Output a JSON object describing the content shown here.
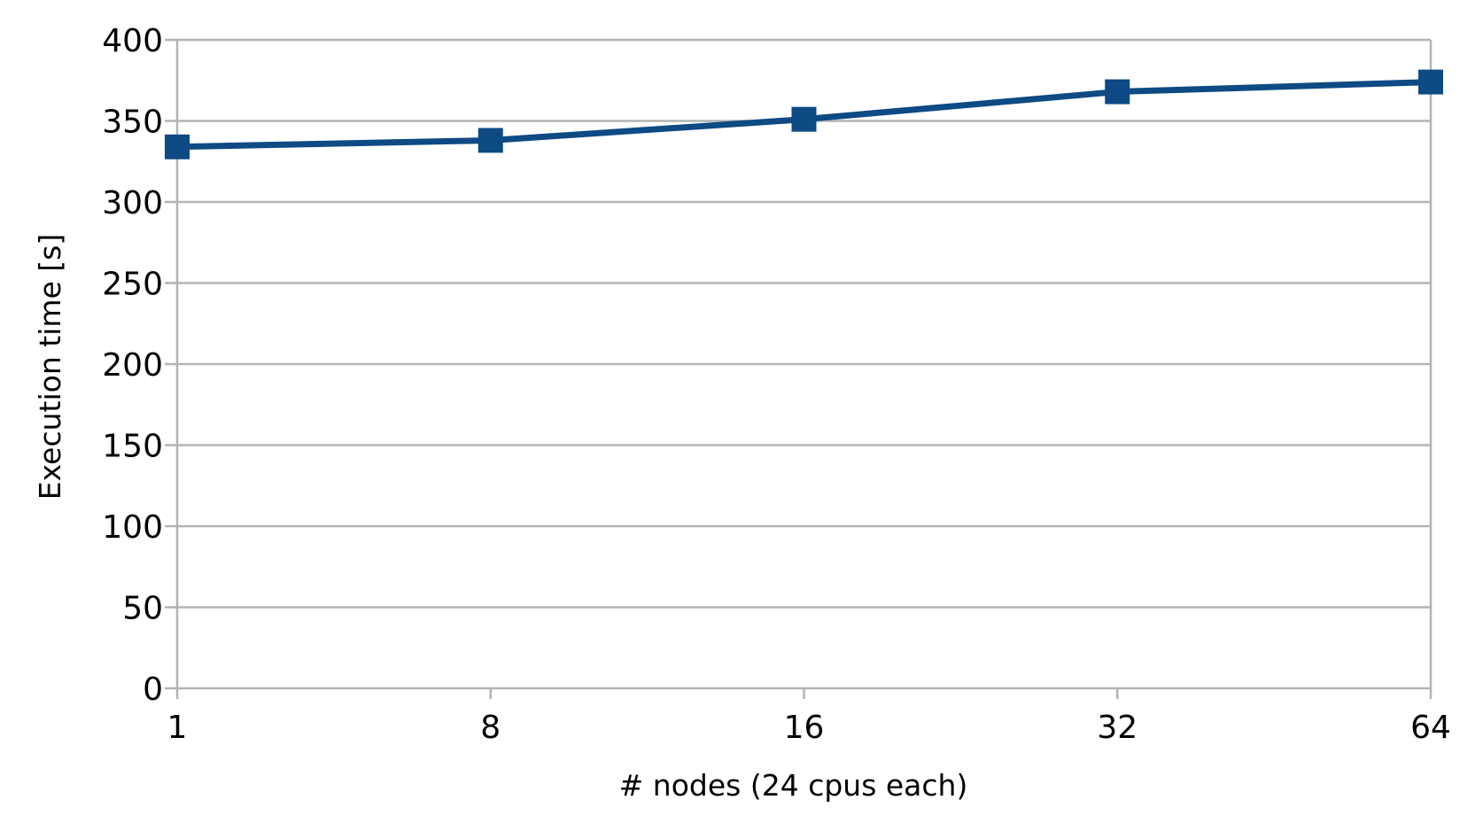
{
  "chart_data": {
    "type": "line",
    "title": "",
    "xlabel": "# nodes (24 cpus each)",
    "ylabel": "Execution time [s]",
    "categories": [
      "1",
      "8",
      "16",
      "32",
      "64"
    ],
    "x_scale": "categorical",
    "ylim": [
      0,
      400
    ],
    "yticks": [
      0,
      50,
      100,
      150,
      200,
      250,
      300,
      350,
      400
    ],
    "grid": "horizontal",
    "legend": "none",
    "marker": "square",
    "series": [
      {
        "color": "#0e4a84",
        "values": [
          334,
          338,
          351,
          368,
          374
        ]
      }
    ]
  }
}
